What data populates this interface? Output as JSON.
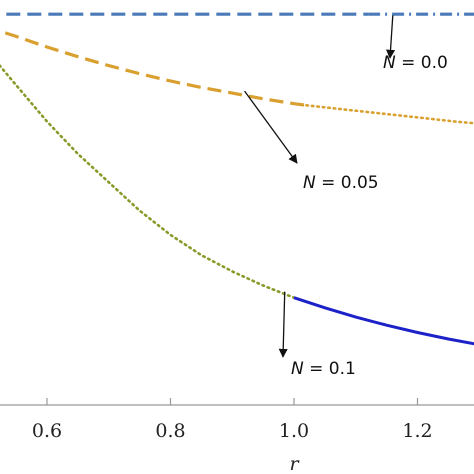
{
  "chart_data": {
    "type": "line",
    "title": "",
    "xlabel": "r",
    "ylabel": "",
    "xlim": [
      0.5,
      1.38
    ],
    "ylim": [
      0.0,
      1.0
    ],
    "x_ticks": [
      {
        "value": 0.6,
        "label": "0.6"
      },
      {
        "value": 0.8,
        "label": "0.8"
      },
      {
        "value": 1.0,
        "label": "1.0"
      },
      {
        "value": 1.2,
        "label": "1.2"
      }
    ],
    "grid": false,
    "series": [
      {
        "name": "N = 0.0",
        "color": "#4a7ab8",
        "segments": [
          {
            "style": "dashed",
            "x": [
              0.5,
              1.12
            ],
            "y": [
              0.965,
              0.965
            ]
          },
          {
            "style": "dashdot",
            "x": [
              1.12,
              1.38
            ],
            "y": [
              0.965,
              0.965
            ]
          }
        ]
      },
      {
        "name": "N = 0.05",
        "color": "#d9a030",
        "segments": [
          {
            "style": "dashed",
            "x": [
              0.5,
              0.55,
              0.6,
              0.65,
              0.7,
              0.75,
              0.8,
              0.85,
              0.9,
              0.95,
              1.0,
              1.02
            ],
            "y": [
              0.935,
              0.91,
              0.884,
              0.86,
              0.838,
              0.818,
              0.8,
              0.784,
              0.77,
              0.756,
              0.744,
              0.74
            ]
          },
          {
            "style": "dotted",
            "x": [
              1.02,
              1.08,
              1.14,
              1.2,
              1.26,
              1.32,
              1.38
            ],
            "y": [
              0.74,
              0.73,
              0.72,
              0.71,
              0.7,
              0.692,
              0.686
            ]
          }
        ]
      },
      {
        "name": "N = 0.1",
        "color": "#8a9a2a",
        "segments": [
          {
            "style": "dotted",
            "x": [
              0.5,
              0.55,
              0.6,
              0.65,
              0.7,
              0.75,
              0.8,
              0.85,
              0.9,
              0.95,
              1.0
            ],
            "y": [
              0.88,
              0.79,
              0.7,
              0.62,
              0.55,
              0.48,
              0.42,
              0.37,
              0.33,
              0.295,
              0.265
            ]
          }
        ]
      },
      {
        "name": "N = 0.1",
        "color": "#1c22c8",
        "segments": [
          {
            "style": "solid",
            "x": [
              1.0,
              1.05,
              1.1,
              1.15,
              1.2,
              1.25,
              1.3,
              1.35,
              1.38
            ],
            "y": [
              0.265,
              0.24,
              0.217,
              0.197,
              0.179,
              0.163,
              0.149,
              0.137,
              0.13
            ]
          }
        ]
      }
    ],
    "annotations": [
      {
        "var": "N",
        "text": " = 0.0",
        "point": {
          "x": 1.16,
          "y": 0.962
        }
      },
      {
        "var": "N",
        "text": " = 0.05",
        "point": {
          "x": 0.92,
          "y": 0.775
        }
      },
      {
        "var": "N",
        "text": " = 0.1",
        "point": {
          "x": 0.985,
          "y": 0.28
        }
      }
    ]
  }
}
